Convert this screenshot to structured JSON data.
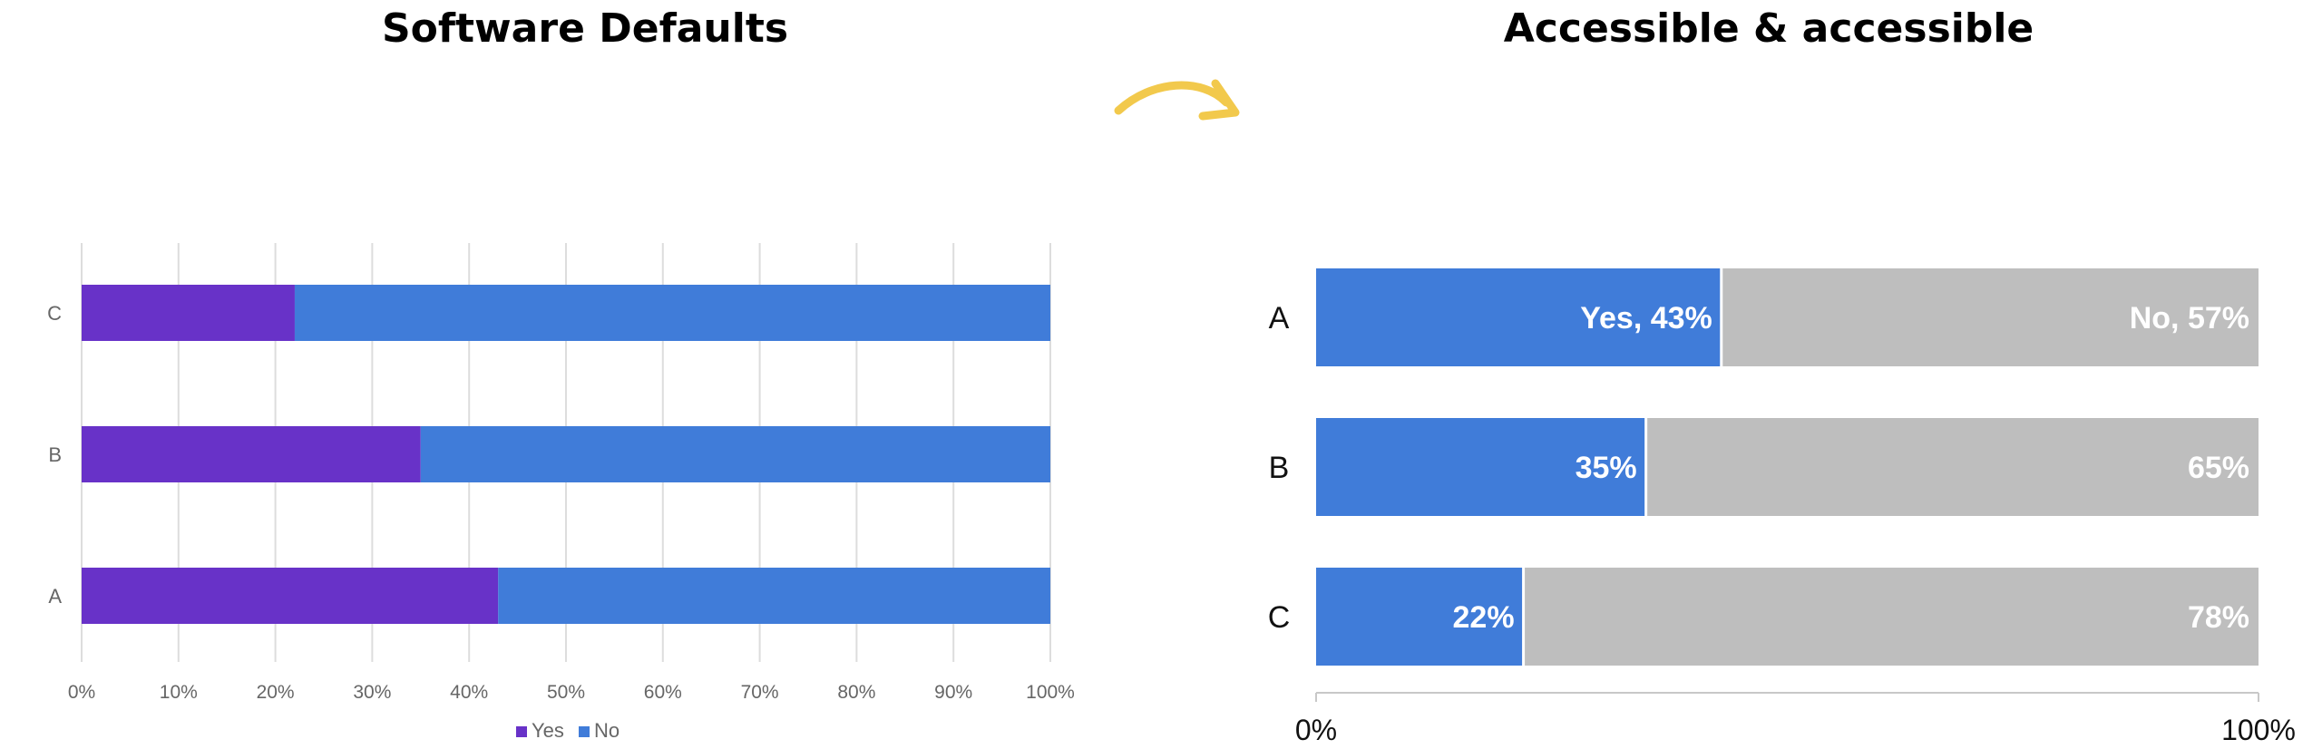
{
  "titles": {
    "left": "Software Defaults",
    "right": "Accessible & accessible"
  },
  "colors": {
    "purple": "#6832C8",
    "blue": "#407CD9",
    "gray": "#BEBEBE",
    "arrow": "#F2C94C",
    "grid": "#DDDDDD",
    "axis_text": "#666666"
  },
  "decoration": {
    "arrow_icon": "curved-arrow-right-icon"
  },
  "chart_data": [
    {
      "type": "bar",
      "orientation": "horizontal",
      "stacked": true,
      "percent": true,
      "title": "Software Defaults",
      "categories": [
        "C",
        "B",
        "A"
      ],
      "series": [
        {
          "name": "Yes",
          "values": [
            22,
            35,
            43
          ]
        },
        {
          "name": "No",
          "values": [
            78,
            65,
            57
          ]
        }
      ],
      "xlim": [
        0,
        100
      ],
      "xticks": [
        "0%",
        "10%",
        "20%",
        "30%",
        "40%",
        "50%",
        "60%",
        "70%",
        "80%",
        "90%",
        "100%"
      ],
      "grid": true,
      "legend": "bottom"
    },
    {
      "type": "bar",
      "orientation": "horizontal",
      "stacked": true,
      "percent": true,
      "title": "Accessible & accessible",
      "categories": [
        "A",
        "B",
        "C"
      ],
      "series": [
        {
          "values": [
            43,
            35,
            22
          ]
        },
        {
          "values": [
            57,
            65,
            78
          ]
        }
      ],
      "data_labels": [
        [
          "Yes, 43%",
          "No, 57%"
        ],
        [
          "35%",
          "65%"
        ],
        [
          "22%",
          "78%"
        ]
      ],
      "xlim": [
        0,
        100
      ],
      "xticks": [
        "0%",
        "100%"
      ],
      "grid": false,
      "legend": "none"
    }
  ]
}
